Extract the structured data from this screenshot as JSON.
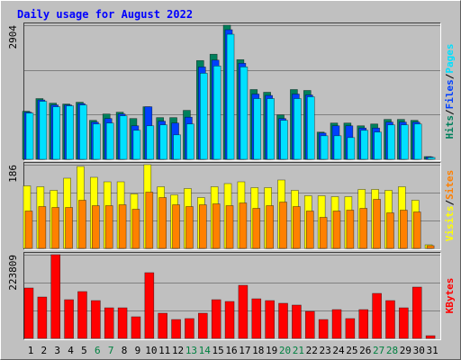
{
  "chart_data": {
    "type": "bar",
    "title": "Daily usage for August 2022",
    "categories": [
      "1",
      "2",
      "3",
      "4",
      "5",
      "6",
      "7",
      "8",
      "9",
      "10",
      "11",
      "12",
      "13",
      "14",
      "15",
      "16",
      "17",
      "18",
      "19",
      "20",
      "21",
      "22",
      "23",
      "24",
      "25",
      "26",
      "27",
      "28",
      "29",
      "30",
      "31"
    ],
    "category_colors": [
      "#000000",
      "#000000",
      "#000000",
      "#000000",
      "#000000",
      "#008040",
      "#008040",
      "#000000",
      "#000000",
      "#000000",
      "#000000",
      "#000000",
      "#008040",
      "#008040",
      "#000000",
      "#000000",
      "#000000",
      "#000000",
      "#000000",
      "#008040",
      "#008040",
      "#000000",
      "#000000",
      "#000000",
      "#000000",
      "#000000",
      "#008040",
      "#008040",
      "#000000",
      "#000000",
      "#000000"
    ],
    "separator": "/",
    "panels": [
      {
        "ylim": [
          0,
          2904
        ],
        "yticks": [
          2904
        ],
        "grid_lines": [
          968,
          1936
        ],
        "series": [
          {
            "name": "Hits",
            "color": "#00805c",
            "values": [
              1040,
              1315,
              1216,
              1197,
              1236,
              844,
              981,
              1020,
              883,
              1138,
              903,
              903,
              1060,
              2139,
              2276,
              2904,
              2158,
              1511,
              1452,
              962,
              1511,
              1491,
              589,
              785,
              785,
              726,
              765,
              864,
              864,
              844,
              59
            ]
          },
          {
            "name": "Files",
            "color": "#0040ff",
            "values": [
              1020,
              1285,
              1177,
              1177,
              1206,
              805,
              883,
              981,
              726,
              1138,
              825,
              785,
              912,
              2000,
              2148,
              2806,
              2080,
              1413,
              1383,
              883,
              1413,
              1393,
              569,
              726,
              726,
              677,
              677,
              805,
              805,
              805,
              50
            ]
          },
          {
            "name": "Pages",
            "color": "#00e0ff",
            "values": [
              1001,
              1256,
              1138,
              1158,
              1177,
              765,
              785,
              942,
              628,
              726,
              746,
              530,
              765,
              1864,
              2021,
              2708,
              2001,
              1315,
              1315,
              844,
              1315,
              1354,
              510,
              510,
              471,
              628,
              589,
              746,
              746,
              765,
              39
            ]
          }
        ]
      },
      {
        "ylim": [
          0,
          186
        ],
        "yticks": [
          186
        ],
        "grid_lines": [
          62,
          124
        ],
        "series": [
          {
            "name": "Visits",
            "color": "#ffff00",
            "values": [
              139,
              137,
              129,
              156,
              182,
              158,
              148,
              148,
              121,
              186,
              137,
              119,
              133,
              113,
              137,
              144,
              148,
              135,
              135,
              152,
              129,
              117,
              117,
              115,
              115,
              131,
              131,
              129,
              137,
              107,
              8
            ]
          },
          {
            "name": "Sites",
            "color": "#ff8000",
            "values": [
              83,
              93,
              91,
              91,
              107,
              95,
              95,
              97,
              87,
              125,
              113,
              97,
              93,
              97,
              99,
              95,
              101,
              89,
              95,
              103,
              93,
              83,
              69,
              83,
              85,
              89,
              109,
              79,
              85,
              81,
              6
            ]
          }
        ]
      },
      {
        "ylim": [
          0,
          223809
        ],
        "yticks": [
          223809
        ],
        "grid_lines": [
          74603,
          149206
        ],
        "series": [
          {
            "name": "KBytes",
            "color": "#ff0000",
            "values": [
              134800,
              110700,
              223809,
              103500,
              125200,
              101100,
              81800,
              81800,
              57800,
              175700,
              67400,
              50500,
              53000,
              67400,
              103500,
              98700,
              142000,
              105900,
              101100,
              93900,
              89100,
              72200,
              50500,
              77000,
              53000,
              77000,
              120300,
              101100,
              81800,
              137200,
              7200
            ]
          }
        ]
      }
    ]
  }
}
